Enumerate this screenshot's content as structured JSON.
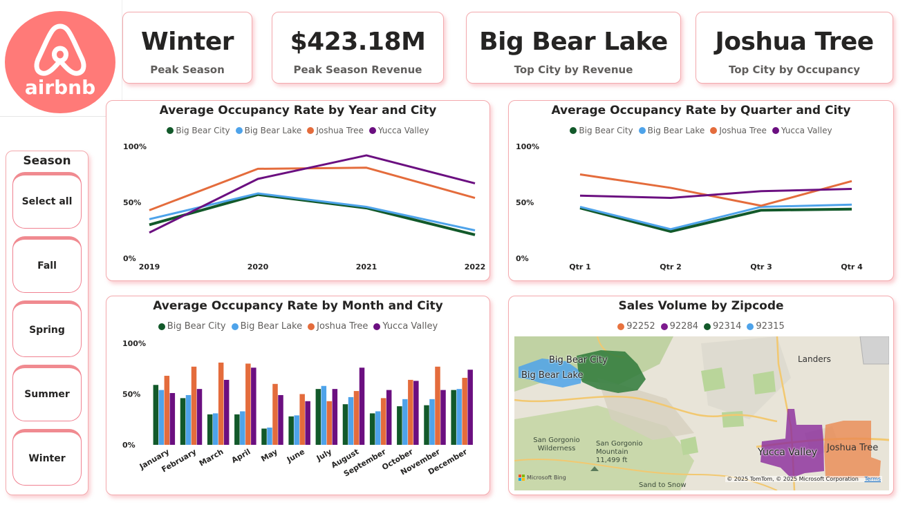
{
  "brand": {
    "name": "airbnb",
    "color": "#ff7a78"
  },
  "kpis": [
    {
      "value": "Winter",
      "label": "Peak Season"
    },
    {
      "value": "$423.18M",
      "label": "Peak Season Revenue"
    },
    {
      "value": "Big Bear Lake",
      "label": "Top City by Revenue"
    },
    {
      "value": "Joshua Tree",
      "label": "Top City by Occupancy"
    }
  ],
  "slicer": {
    "title": "Season",
    "options": [
      "Select all",
      "Fall",
      "Spring",
      "Summer",
      "Winter"
    ]
  },
  "colors": {
    "big_bear_city": "#12592a",
    "big_bear_lake": "#4ea3ea",
    "joshua_tree": "#e46c3c",
    "yucca_valley": "#6b0f80",
    "z92252": "#e8733f",
    "z92284": "#7d1b8e",
    "z92314": "#12592a",
    "z92315": "#4ea3ea"
  },
  "chart_data": [
    {
      "type": "line",
      "title": "Average Occupancy Rate by Year and City",
      "categories": [
        "2019",
        "2020",
        "2021",
        "2022"
      ],
      "ylim": [
        0,
        100
      ],
      "yticks": [
        "100%",
        "50%",
        "0%"
      ],
      "legend_position": "top",
      "series": [
        {
          "name": "Big Bear City",
          "values": [
            30,
            57,
            45,
            21
          ]
        },
        {
          "name": "Big Bear Lake",
          "values": [
            35,
            58,
            46,
            25
          ]
        },
        {
          "name": "Joshua Tree",
          "values": [
            43,
            80,
            81,
            54
          ]
        },
        {
          "name": "Yucca Valley",
          "values": [
            23,
            71,
            92,
            67
          ]
        }
      ]
    },
    {
      "type": "line",
      "title": "Average Occupancy Rate by Quarter and City",
      "categories": [
        "Qtr 1",
        "Qtr 2",
        "Qtr 3",
        "Qtr 4"
      ],
      "ylim": [
        0,
        100
      ],
      "yticks": [
        "100%",
        "50%",
        "0%"
      ],
      "legend_position": "top",
      "series": [
        {
          "name": "Big Bear City",
          "values": [
            45,
            24,
            43,
            44
          ]
        },
        {
          "name": "Big Bear Lake",
          "values": [
            46,
            26,
            46,
            48
          ]
        },
        {
          "name": "Joshua Tree",
          "values": [
            75,
            63,
            47,
            69
          ]
        },
        {
          "name": "Yucca Valley",
          "values": [
            56,
            54,
            60,
            62
          ]
        }
      ]
    },
    {
      "type": "bar",
      "title": "Average Occupancy Rate by Month and City",
      "categories": [
        "January",
        "February",
        "March",
        "April",
        "May",
        "June",
        "July",
        "August",
        "September",
        "October",
        "November",
        "December"
      ],
      "ylim": [
        0,
        100
      ],
      "yticks": [
        "100%",
        "50%",
        "0%"
      ],
      "legend_position": "top",
      "series": [
        {
          "name": "Big Bear City",
          "values": [
            59,
            46,
            30,
            30,
            16,
            28,
            55,
            40,
            31,
            38,
            39,
            54
          ]
        },
        {
          "name": "Big Bear Lake",
          "values": [
            54,
            49,
            31,
            33,
            17,
            29,
            58,
            47,
            33,
            45,
            45,
            55
          ]
        },
        {
          "name": "Joshua Tree",
          "values": [
            68,
            77,
            81,
            80,
            60,
            50,
            43,
            53,
            46,
            64,
            77,
            66
          ]
        },
        {
          "name": "Yucca Valley",
          "values": [
            51,
            55,
            64,
            76,
            49,
            43,
            55,
            76,
            54,
            63,
            54,
            74
          ]
        }
      ]
    }
  ],
  "map": {
    "title": "Sales Volume by Zipcode",
    "legend": [
      "92252",
      "92284",
      "92314",
      "92315"
    ],
    "labels": {
      "big_bear_city": "Big Bear City",
      "big_bear_lake": "Big Bear Lake",
      "landers": "Landers",
      "san_gorgonio_wilderness": "San Gorgonio Wilderness",
      "san_gorgonio_mountain": "San Gorgonio Mountain",
      "elevation": "11,499 ft",
      "yucca_valley": "Yucca Valley",
      "joshua_tree": "Joshua Tree",
      "sand_to_snow": "Sand to Snow"
    },
    "bing": "Microsoft Bing",
    "copyright": "© 2025 TomTom, © 2025 Microsoft Corporation",
    "terms": "Terms"
  }
}
